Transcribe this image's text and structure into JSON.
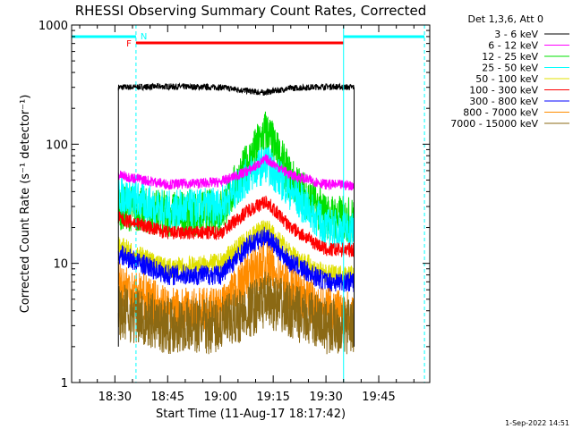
{
  "chart_data": {
    "type": "line",
    "title": "RHESSI Observing Summary Count Rates, Corrected",
    "xlabel": "Start Time (11-Aug-17 18:17:42)",
    "ylabel": "Corrected Count Rate (s⁻¹ detector⁻¹)",
    "y_scale": "log",
    "ylim": [
      1,
      1000
    ],
    "xlim": [
      "18:17:42",
      "19:59:30"
    ],
    "y_ticks": [
      "1",
      "10",
      "100",
      "1000"
    ],
    "x_ticks": [
      "18:30",
      "18:45",
      "19:00",
      "19:15",
      "19:30",
      "19:45"
    ],
    "legend_title": "Det 1,3,6, Att 0",
    "legend_position": "right",
    "grid": false,
    "time_axis_unit": "HH:MM",
    "data_span": [
      "18:31",
      "19:38"
    ],
    "series": [
      {
        "name": "3 - 6 keV",
        "color": "#000000",
        "x": [
          "18:31",
          "18:45",
          "19:00",
          "19:08",
          "19:12",
          "19:20",
          "19:30",
          "19:38"
        ],
        "values": [
          300,
          305,
          300,
          280,
          270,
          295,
          305,
          300
        ]
      },
      {
        "name": "6 - 12 keV",
        "color": "#ff00ff",
        "x": [
          "18:31",
          "18:45",
          "19:00",
          "19:08",
          "19:13",
          "19:20",
          "19:30",
          "19:38"
        ],
        "values": [
          55,
          46,
          48,
          60,
          75,
          55,
          46,
          45
        ]
      },
      {
        "name": "12 - 25 keV",
        "color": "#00e000",
        "x": [
          "18:31",
          "18:45",
          "19:00",
          "19:08",
          "19:13",
          "19:20",
          "19:30",
          "19:38"
        ],
        "values": [
          30,
          26,
          27,
          70,
          130,
          50,
          25,
          23
        ]
      },
      {
        "name": "25 - 50 keV",
        "color": "#00ffff",
        "x": [
          "18:31",
          "18:45",
          "19:00",
          "19:08",
          "19:13",
          "19:20",
          "19:30",
          "19:38"
        ],
        "values": [
          38,
          28,
          30,
          55,
          70,
          40,
          20,
          19
        ]
      },
      {
        "name": "50 - 100 keV",
        "color": "#e0e000",
        "x": [
          "18:31",
          "18:45",
          "19:00",
          "19:08",
          "19:13",
          "19:20",
          "19:30",
          "19:38"
        ],
        "values": [
          14,
          9,
          10,
          16,
          20,
          12,
          8,
          8
        ]
      },
      {
        "name": "100 - 300 keV",
        "color": "#ff0000",
        "x": [
          "18:31",
          "18:45",
          "19:00",
          "19:08",
          "19:13",
          "19:20",
          "19:30",
          "19:38"
        ],
        "values": [
          24,
          18,
          18,
          28,
          33,
          20,
          13,
          13
        ]
      },
      {
        "name": "300 - 800 keV",
        "color": "#0000ff",
        "x": [
          "18:31",
          "18:45",
          "19:00",
          "19:08",
          "19:13",
          "19:20",
          "19:30",
          "19:38"
        ],
        "values": [
          12,
          8,
          8,
          14,
          17,
          10,
          7,
          7
        ]
      },
      {
        "name": "800 - 7000 keV",
        "color": "#ff8c00",
        "x": [
          "18:31",
          "18:45",
          "19:00",
          "19:08",
          "19:13",
          "19:20",
          "19:30",
          "19:38"
        ],
        "values": [
          7,
          4,
          4,
          8,
          10,
          6,
          4,
          4
        ]
      },
      {
        "name": "7000 - 15000 keV",
        "color": "#8b6914",
        "x": [
          "18:31",
          "18:45",
          "19:00",
          "19:08",
          "19:13",
          "19:20",
          "19:30",
          "19:38"
        ],
        "values": [
          4,
          3,
          3,
          4,
          5,
          4,
          3,
          3
        ]
      }
    ],
    "annotations": {
      "flag_F": {
        "label": "F",
        "color": "#ff0000",
        "start": "18:36",
        "end": "19:35"
      },
      "flag_N": {
        "label": "N",
        "color": "#00ffff"
      },
      "night_intervals": [
        [
          "18:17:42",
          "18:36"
        ],
        [
          "19:35",
          "19:58"
        ]
      ]
    }
  },
  "timestamp": "1-Sep-2022 14:51"
}
